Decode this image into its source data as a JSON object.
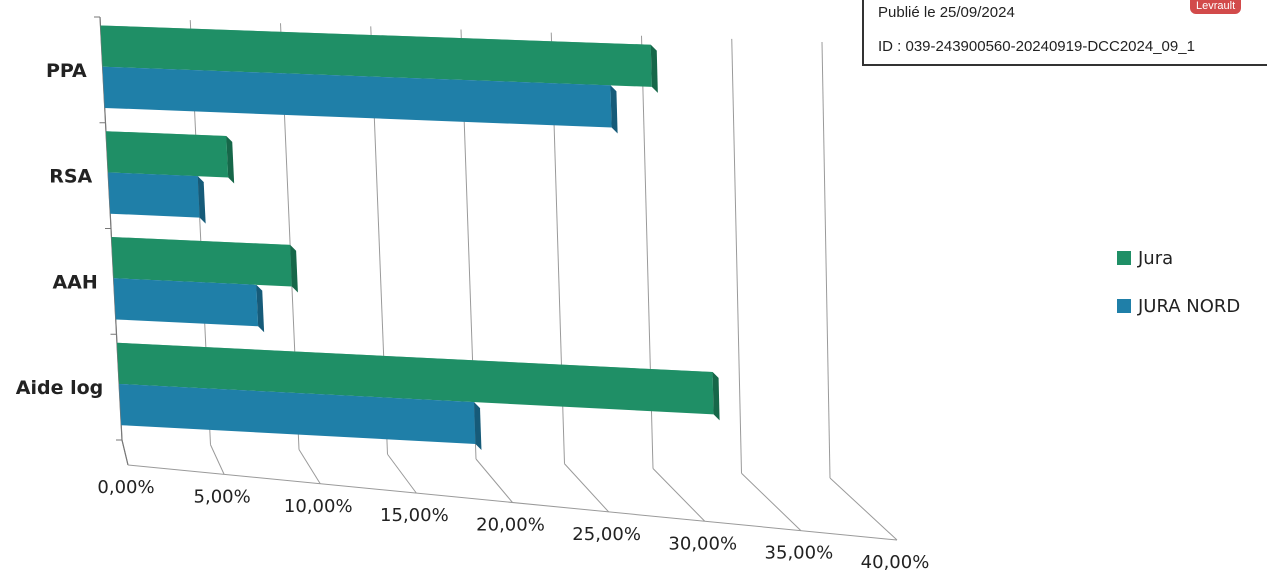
{
  "stamp": {
    "published": "Publié le 25/09/2024",
    "id": "ID : 039-243900560-20240919-DCC2024_09_1",
    "logo_text": "Levrault"
  },
  "chart_data": {
    "type": "bar",
    "orientation": "horizontal",
    "style": "3d",
    "categories": [
      "PPA",
      "RSA",
      "AAH",
      "Aide log"
    ],
    "series": [
      {
        "name": "Jura",
        "color": "#1f8f66",
        "values": [
          30.5,
          6.7,
          10.0,
          33.5
        ]
      },
      {
        "name": "JURA NORD",
        "color": "#1f7fa8",
        "values": [
          28.2,
          5.0,
          8.0,
          20.0
        ]
      }
    ],
    "x_ticks": [
      "0,00%",
      "5,00%",
      "10,00%",
      "15,00%",
      "20,00%",
      "25,00%",
      "30,00%",
      "35,00%",
      "40,00%"
    ],
    "xlim": [
      0,
      40
    ],
    "grid": true,
    "legend_position": "right",
    "title": "",
    "xlabel": "",
    "ylabel": ""
  }
}
